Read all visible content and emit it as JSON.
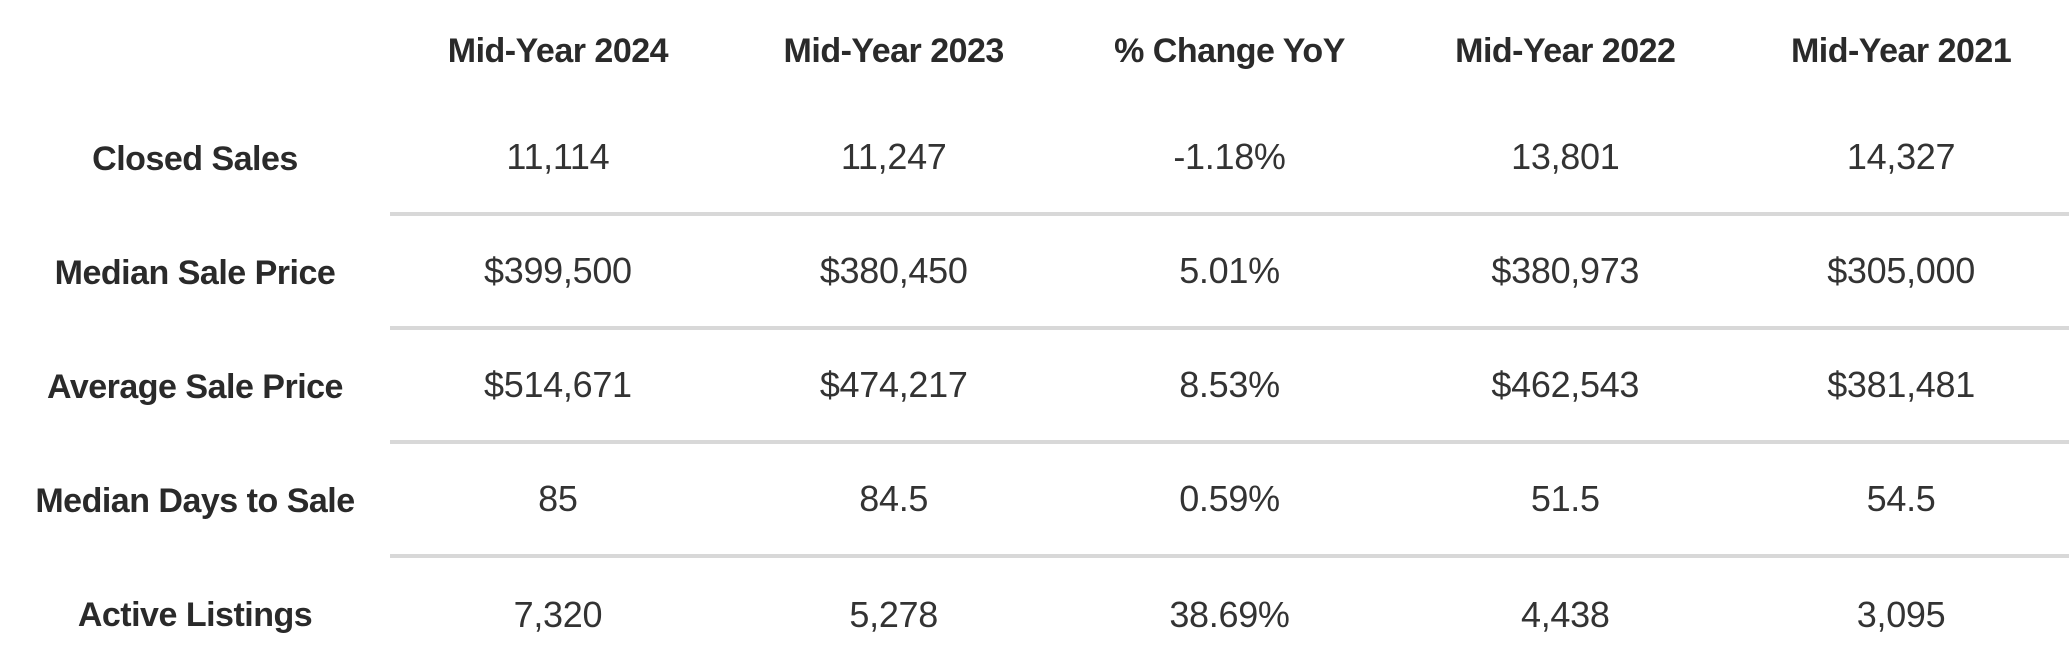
{
  "colors": {
    "background": "#ffffff",
    "header_text": "#2a2a2a",
    "value_text": "#333333",
    "divider_line": "#d8d8d8"
  },
  "chart_data": {
    "type": "table",
    "title": "",
    "columns": [
      "Mid-Year 2024",
      "Mid-Year 2023",
      "% Change YoY",
      "Mid-Year 2022",
      "Mid-Year 2021"
    ],
    "rows": [
      {
        "label": "Closed Sales",
        "values": [
          "11,114",
          "11,247",
          "-1.18%",
          "13,801",
          "14,327"
        ]
      },
      {
        "label": "Median Sale Price",
        "values": [
          "$399,500",
          "$380,450",
          "5.01%",
          "$380,973",
          "$305,000"
        ]
      },
      {
        "label": "Average Sale Price",
        "values": [
          "$514,671",
          "$474,217",
          "8.53%",
          "$462,543",
          "$381,481"
        ]
      },
      {
        "label": "Median Days to Sale",
        "values": [
          "85",
          "84.5",
          "0.59%",
          "51.5",
          "54.5"
        ]
      },
      {
        "label": "Active Listings",
        "values": [
          "7,320",
          "5,278",
          "38.69%",
          "4,438",
          "3,095"
        ]
      }
    ]
  }
}
